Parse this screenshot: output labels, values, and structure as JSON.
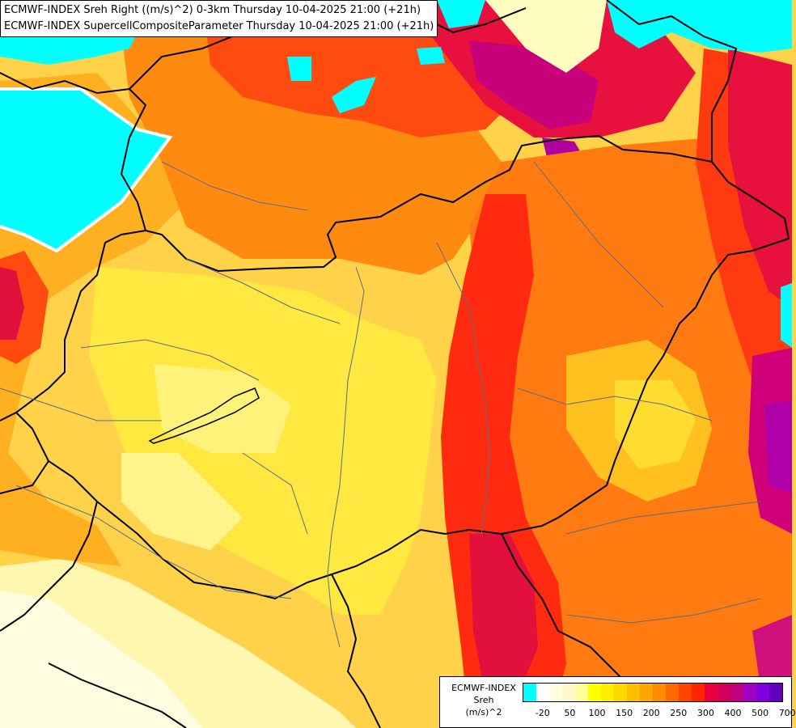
{
  "header": {
    "line1": "ECMWF-INDEX Sreh Right ((m/s)^2) 0-3km Thursday 10-04-2025 21:00 (+21h)",
    "line2": "ECMWF-INDEX SupercellCompositeParameter Thursday 10-04-2025 21:00 (+21h)"
  },
  "legend": {
    "title": [
      "ECMWF-INDEX",
      "Sreh",
      "(m/s)^2"
    ],
    "colors": [
      "#00ffff",
      "#ffffff",
      "#ffffe0",
      "#fffacd",
      "#ffff99",
      "#ffff00",
      "#ffee00",
      "#ffd700",
      "#ffbf00",
      "#ffa500",
      "#ff8c00",
      "#ff6a00",
      "#ff4500",
      "#ff2400",
      "#e8003c",
      "#d1005a",
      "#c00080",
      "#a000c0",
      "#8000e0",
      "#6000c0",
      "#4000a0",
      "#200080",
      "#000080"
    ],
    "labels": [
      {
        "text": "-20",
        "index": 1
      },
      {
        "text": "50",
        "index": 3
      },
      {
        "text": "100",
        "index": 5
      },
      {
        "text": "150",
        "index": 7
      },
      {
        "text": "200",
        "index": 9
      },
      {
        "text": "250",
        "index": 11
      },
      {
        "text": "300",
        "index": 13
      },
      {
        "text": "400",
        "index": 15
      },
      {
        "text": "500",
        "index": 17
      },
      {
        "text": "700",
        "index": 19
      }
    ]
  }
}
